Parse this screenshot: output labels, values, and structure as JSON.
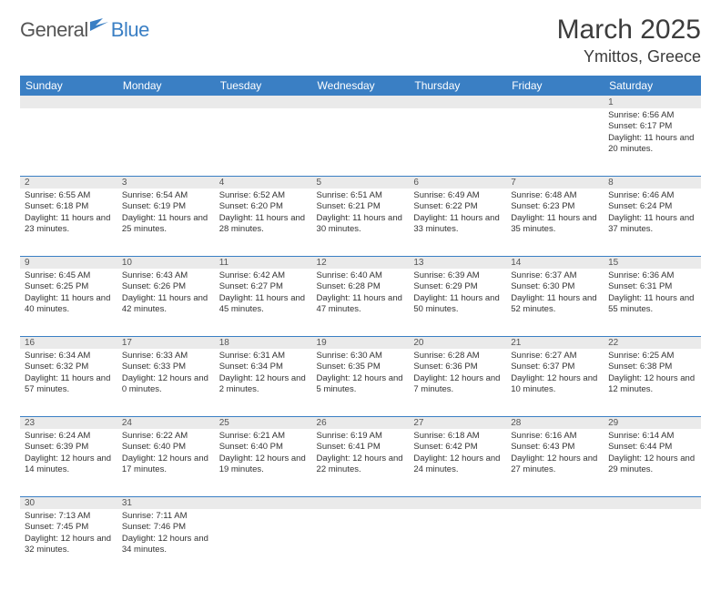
{
  "brand": {
    "part1": "General",
    "part2": "Blue"
  },
  "title": "March 2025",
  "location": "Ymittos, Greece",
  "colors": {
    "header_bg": "#3a7fc4",
    "header_text": "#ffffff",
    "daynum_bg": "#eaeaea",
    "border": "#3a7fc4",
    "text": "#333333",
    "brand_gray": "#555555",
    "brand_blue": "#3a7fc4"
  },
  "daysOfWeek": [
    "Sunday",
    "Monday",
    "Tuesday",
    "Wednesday",
    "Thursday",
    "Friday",
    "Saturday"
  ],
  "weeks": [
    [
      {
        "num": "",
        "lines": []
      },
      {
        "num": "",
        "lines": []
      },
      {
        "num": "",
        "lines": []
      },
      {
        "num": "",
        "lines": []
      },
      {
        "num": "",
        "lines": []
      },
      {
        "num": "",
        "lines": []
      },
      {
        "num": "1",
        "lines": [
          "Sunrise: 6:56 AM",
          "Sunset: 6:17 PM",
          "Daylight: 11 hours and 20 minutes."
        ]
      }
    ],
    [
      {
        "num": "2",
        "lines": [
          "Sunrise: 6:55 AM",
          "Sunset: 6:18 PM",
          "Daylight: 11 hours and 23 minutes."
        ]
      },
      {
        "num": "3",
        "lines": [
          "Sunrise: 6:54 AM",
          "Sunset: 6:19 PM",
          "Daylight: 11 hours and 25 minutes."
        ]
      },
      {
        "num": "4",
        "lines": [
          "Sunrise: 6:52 AM",
          "Sunset: 6:20 PM",
          "Daylight: 11 hours and 28 minutes."
        ]
      },
      {
        "num": "5",
        "lines": [
          "Sunrise: 6:51 AM",
          "Sunset: 6:21 PM",
          "Daylight: 11 hours and 30 minutes."
        ]
      },
      {
        "num": "6",
        "lines": [
          "Sunrise: 6:49 AM",
          "Sunset: 6:22 PM",
          "Daylight: 11 hours and 33 minutes."
        ]
      },
      {
        "num": "7",
        "lines": [
          "Sunrise: 6:48 AM",
          "Sunset: 6:23 PM",
          "Daylight: 11 hours and 35 minutes."
        ]
      },
      {
        "num": "8",
        "lines": [
          "Sunrise: 6:46 AM",
          "Sunset: 6:24 PM",
          "Daylight: 11 hours and 37 minutes."
        ]
      }
    ],
    [
      {
        "num": "9",
        "lines": [
          "Sunrise: 6:45 AM",
          "Sunset: 6:25 PM",
          "Daylight: 11 hours and 40 minutes."
        ]
      },
      {
        "num": "10",
        "lines": [
          "Sunrise: 6:43 AM",
          "Sunset: 6:26 PM",
          "Daylight: 11 hours and 42 minutes."
        ]
      },
      {
        "num": "11",
        "lines": [
          "Sunrise: 6:42 AM",
          "Sunset: 6:27 PM",
          "Daylight: 11 hours and 45 minutes."
        ]
      },
      {
        "num": "12",
        "lines": [
          "Sunrise: 6:40 AM",
          "Sunset: 6:28 PM",
          "Daylight: 11 hours and 47 minutes."
        ]
      },
      {
        "num": "13",
        "lines": [
          "Sunrise: 6:39 AM",
          "Sunset: 6:29 PM",
          "Daylight: 11 hours and 50 minutes."
        ]
      },
      {
        "num": "14",
        "lines": [
          "Sunrise: 6:37 AM",
          "Sunset: 6:30 PM",
          "Daylight: 11 hours and 52 minutes."
        ]
      },
      {
        "num": "15",
        "lines": [
          "Sunrise: 6:36 AM",
          "Sunset: 6:31 PM",
          "Daylight: 11 hours and 55 minutes."
        ]
      }
    ],
    [
      {
        "num": "16",
        "lines": [
          "Sunrise: 6:34 AM",
          "Sunset: 6:32 PM",
          "Daylight: 11 hours and 57 minutes."
        ]
      },
      {
        "num": "17",
        "lines": [
          "Sunrise: 6:33 AM",
          "Sunset: 6:33 PM",
          "Daylight: 12 hours and 0 minutes."
        ]
      },
      {
        "num": "18",
        "lines": [
          "Sunrise: 6:31 AM",
          "Sunset: 6:34 PM",
          "Daylight: 12 hours and 2 minutes."
        ]
      },
      {
        "num": "19",
        "lines": [
          "Sunrise: 6:30 AM",
          "Sunset: 6:35 PM",
          "Daylight: 12 hours and 5 minutes."
        ]
      },
      {
        "num": "20",
        "lines": [
          "Sunrise: 6:28 AM",
          "Sunset: 6:36 PM",
          "Daylight: 12 hours and 7 minutes."
        ]
      },
      {
        "num": "21",
        "lines": [
          "Sunrise: 6:27 AM",
          "Sunset: 6:37 PM",
          "Daylight: 12 hours and 10 minutes."
        ]
      },
      {
        "num": "22",
        "lines": [
          "Sunrise: 6:25 AM",
          "Sunset: 6:38 PM",
          "Daylight: 12 hours and 12 minutes."
        ]
      }
    ],
    [
      {
        "num": "23",
        "lines": [
          "Sunrise: 6:24 AM",
          "Sunset: 6:39 PM",
          "Daylight: 12 hours and 14 minutes."
        ]
      },
      {
        "num": "24",
        "lines": [
          "Sunrise: 6:22 AM",
          "Sunset: 6:40 PM",
          "Daylight: 12 hours and 17 minutes."
        ]
      },
      {
        "num": "25",
        "lines": [
          "Sunrise: 6:21 AM",
          "Sunset: 6:40 PM",
          "Daylight: 12 hours and 19 minutes."
        ]
      },
      {
        "num": "26",
        "lines": [
          "Sunrise: 6:19 AM",
          "Sunset: 6:41 PM",
          "Daylight: 12 hours and 22 minutes."
        ]
      },
      {
        "num": "27",
        "lines": [
          "Sunrise: 6:18 AM",
          "Sunset: 6:42 PM",
          "Daylight: 12 hours and 24 minutes."
        ]
      },
      {
        "num": "28",
        "lines": [
          "Sunrise: 6:16 AM",
          "Sunset: 6:43 PM",
          "Daylight: 12 hours and 27 minutes."
        ]
      },
      {
        "num": "29",
        "lines": [
          "Sunrise: 6:14 AM",
          "Sunset: 6:44 PM",
          "Daylight: 12 hours and 29 minutes."
        ]
      }
    ],
    [
      {
        "num": "30",
        "lines": [
          "Sunrise: 7:13 AM",
          "Sunset: 7:45 PM",
          "Daylight: 12 hours and 32 minutes."
        ]
      },
      {
        "num": "31",
        "lines": [
          "Sunrise: 7:11 AM",
          "Sunset: 7:46 PM",
          "Daylight: 12 hours and 34 minutes."
        ]
      },
      {
        "num": "",
        "lines": []
      },
      {
        "num": "",
        "lines": []
      },
      {
        "num": "",
        "lines": []
      },
      {
        "num": "",
        "lines": []
      },
      {
        "num": "",
        "lines": []
      }
    ]
  ]
}
